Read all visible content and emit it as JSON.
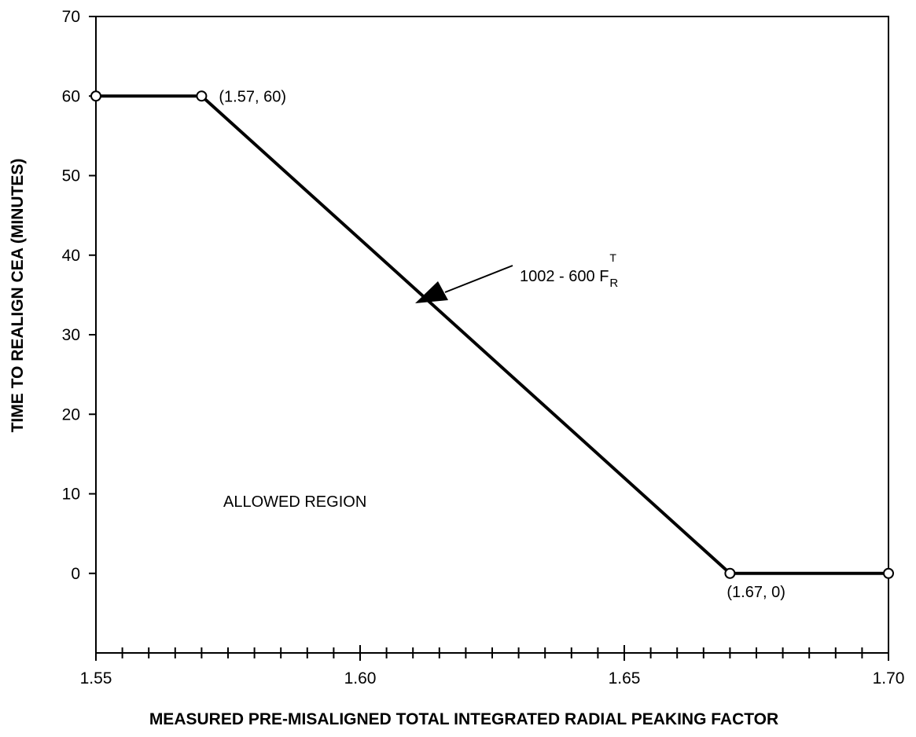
{
  "chart_data": {
    "type": "line",
    "xlabel": "MEASURED PRE-MISALIGNED TOTAL INTEGRATED RADIAL PEAKING FACTOR",
    "ylabel": "TIME TO REALIGN CEA (MINUTES)",
    "xlim": [
      1.55,
      1.7
    ],
    "ylim": [
      -10,
      70
    ],
    "x_ticks": [
      1.55,
      1.6,
      1.65,
      1.7
    ],
    "x_tick_labels": [
      "1.55",
      "1.60",
      "1.65",
      "1.70"
    ],
    "x_minor_step": 0.005,
    "y_ticks": [
      0,
      10,
      20,
      30,
      40,
      50,
      60,
      70
    ],
    "y_tick_labels": [
      "0",
      "10",
      "20",
      "30",
      "40",
      "50",
      "60",
      "70"
    ],
    "grid": false,
    "series": [
      {
        "x": [
          1.55,
          1.57,
          1.67,
          1.7
        ],
        "y": [
          60,
          60,
          0,
          0
        ]
      }
    ],
    "markers": [
      {
        "x": 1.55,
        "y": 60
      },
      {
        "x": 1.57,
        "y": 60
      },
      {
        "x": 1.67,
        "y": 0
      },
      {
        "x": 1.7,
        "y": 0
      }
    ],
    "annotations": {
      "point_high": "(1.57, 60)",
      "point_low": "(1.67, 0)",
      "equation": "1002 - 600 F",
      "equation_sub": "R",
      "equation_sup": "T",
      "region": "ALLOWED REGION"
    }
  },
  "colors": {
    "line": "#000000",
    "background": "#ffffff"
  }
}
